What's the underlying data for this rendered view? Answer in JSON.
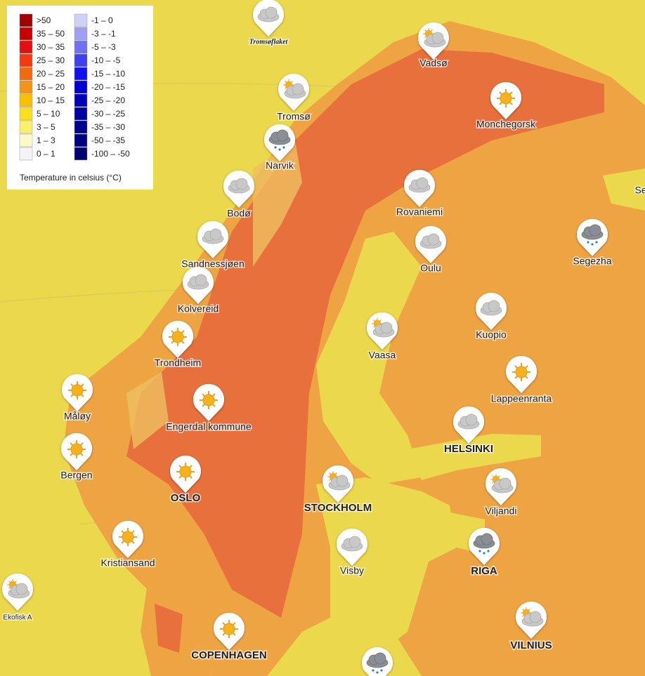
{
  "legend": {
    "title": "Temperature in celsius (°C)",
    "warm": [
      {
        "label": ">50",
        "color": "#a00000"
      },
      {
        "label": "35 – 50",
        "color": "#c80000"
      },
      {
        "label": "30 – 35",
        "color": "#e01010"
      },
      {
        "label": "25 – 30",
        "color": "#f03a10"
      },
      {
        "label": "20 – 25",
        "color": "#f06a10"
      },
      {
        "label": "15 – 20",
        "color": "#f39418"
      },
      {
        "label": "10 – 15",
        "color": "#f8c000"
      },
      {
        "label": "5 – 10",
        "color": "#f8e020"
      },
      {
        "label": "3 – 5",
        "color": "#f8f070"
      },
      {
        "label": "1 – 3",
        "color": "#fafac8"
      },
      {
        "label": "0 – 1",
        "color": "#f4f4f8"
      }
    ],
    "cold": [
      {
        "label": "-1 – 0",
        "color": "#d0d0f8"
      },
      {
        "label": "-3 – -1",
        "color": "#a0a0f0"
      },
      {
        "label": "-5 – -3",
        "color": "#7070f0"
      },
      {
        "label": "-10 – -5",
        "color": "#4040f0"
      },
      {
        "label": "-15 – -10",
        "color": "#1010f0"
      },
      {
        "label": "-20 – -15",
        "color": "#0000d0"
      },
      {
        "label": "-25 – -20",
        "color": "#0000b8"
      },
      {
        "label": "-30 – -25",
        "color": "#0000a0"
      },
      {
        "label": "-35 – -30",
        "color": "#000090"
      },
      {
        "label": "-50 – -35",
        "color": "#000080"
      },
      {
        "label": "-100 – -50",
        "color": "#000070"
      }
    ]
  },
  "cities": [
    "Tromsøflaket",
    "Vadsø",
    "Tromsø",
    "Monchegorsk",
    "Narvik",
    "Bodø",
    "Rovaniemi",
    "Oulu",
    "Segezha",
    "Sandnessjøen",
    "Kolvereid",
    "Kuopio",
    "Vaasa",
    "Trondheim",
    "Lappeenranta",
    "Måløy",
    "Engerdal kommune",
    "HELSINKI",
    "Bergen",
    "OSLO",
    "STOCKHOLM",
    "Viljandi",
    "Kristiansand",
    "Visby",
    "RIGA",
    "Ekofisk A",
    "VILNIUS",
    "COPENHAGEN",
    "Se"
  ]
}
